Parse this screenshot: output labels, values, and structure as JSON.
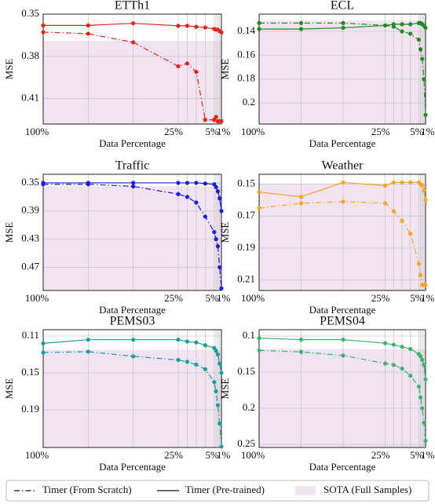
{
  "chart_data": [
    {
      "type": "line",
      "title": "ETTh1",
      "xlabel": "Data Percentage",
      "ylabel": "MSE",
      "color": "#e8211f",
      "x": [
        100,
        75,
        50,
        25,
        20,
        15,
        10,
        5,
        4,
        3,
        2,
        1
      ],
      "xlim": [
        100,
        1
      ],
      "xticks": [
        {
          "value": 100,
          "label": "100%"
        },
        {
          "value": 25,
          "label": "25%"
        },
        {
          "value": 5,
          "label": "5%"
        },
        {
          "value": 1,
          "label": "1%"
        }
      ],
      "xgrid": [
        75,
        50,
        20,
        15,
        10,
        4,
        3,
        2
      ],
      "ylim": [
        0.428,
        0.35
      ],
      "yticks": [
        0.35,
        0.38,
        0.41
      ],
      "grid": true,
      "sota": 0.369,
      "series": [
        {
          "style": "dashdot",
          "values": [
            0.3628,
            0.3639,
            0.37,
            0.387,
            0.385,
            0.391,
            0.425,
            0.425,
            0.423,
            0.426,
            0.426,
            0.426
          ]
        },
        {
          "style": "solid",
          "values": [
            0.358,
            0.358,
            0.3565,
            0.3583,
            0.3583,
            0.359,
            0.3595,
            0.3605,
            0.361,
            0.361,
            0.362,
            0.363
          ]
        }
      ]
    },
    {
      "type": "line",
      "title": "ECL",
      "xlabel": "Data Percentage",
      "ylabel": "MSE",
      "color": "#1e8c1e",
      "x": [
        100,
        75,
        50,
        25,
        20,
        15,
        10,
        5,
        4,
        3,
        2,
        1
      ],
      "xlim": [
        100,
        1
      ],
      "xticks": [
        {
          "value": 100,
          "label": "100%"
        },
        {
          "value": 25,
          "label": "25%"
        },
        {
          "value": 5,
          "label": "5%"
        },
        {
          "value": 1,
          "label": "1%"
        }
      ],
      "xgrid": [
        75,
        50,
        20,
        15,
        10,
        4,
        3,
        2
      ],
      "ylim": [
        0.2177,
        0.1255
      ],
      "yticks": [
        0.14,
        0.16,
        0.18,
        0.2
      ],
      "grid": true,
      "sota": 0.131,
      "series": [
        {
          "style": "dashdot",
          "values": [
            0.133,
            0.133,
            0.133,
            0.135,
            0.136,
            0.14,
            0.142,
            0.147,
            0.155,
            0.163,
            0.18,
            0.21
          ]
        },
        {
          "style": "solid",
          "values": [
            0.138,
            0.138,
            0.137,
            0.135,
            0.134,
            0.134,
            0.134,
            0.133,
            0.133,
            0.134,
            0.135,
            0.137
          ]
        }
      ]
    },
    {
      "type": "line",
      "title": "Traffic",
      "xlabel": "Data Percentage",
      "ylabel": "MSE",
      "color": "#1a1ae6",
      "x": [
        100,
        75,
        50,
        25,
        20,
        15,
        10,
        5,
        4,
        3,
        2,
        1
      ],
      "xlim": [
        100,
        1
      ],
      "xticks": [
        {
          "value": 100,
          "label": "100%"
        },
        {
          "value": 25,
          "label": "25%"
        },
        {
          "value": 5,
          "label": "5%"
        },
        {
          "value": 1,
          "label": "1%"
        }
      ],
      "xgrid": [
        75,
        50,
        20,
        15,
        10,
        4,
        3,
        2
      ],
      "ylim": [
        0.503,
        0.3378
      ],
      "yticks": [
        0.35,
        0.39,
        0.43,
        0.47
      ],
      "grid": true,
      "sota": 0.355,
      "series": [
        {
          "style": "dashdot",
          "values": [
            0.352,
            0.352,
            0.355,
            0.366,
            0.37,
            0.378,
            0.398,
            0.42,
            0.43,
            0.44,
            0.47,
            0.5
          ]
        },
        {
          "style": "solid",
          "values": [
            0.35,
            0.35,
            0.35,
            0.35,
            0.35,
            0.35,
            0.351,
            0.352,
            0.356,
            0.362,
            0.372,
            0.39
          ]
        }
      ]
    },
    {
      "type": "line",
      "title": "Weather",
      "xlabel": "Data Percentage",
      "ylabel": "MSE",
      "color": "#f5a623",
      "x": [
        100,
        75,
        50,
        25,
        20,
        15,
        10,
        5,
        4,
        3,
        2,
        1
      ],
      "xlim": [
        100,
        1
      ],
      "xticks": [
        {
          "value": 100,
          "label": "100%"
        },
        {
          "value": 25,
          "label": "25%"
        },
        {
          "value": 5,
          "label": "5%"
        },
        {
          "value": 1,
          "label": "1%"
        }
      ],
      "xgrid": [
        75,
        50,
        20,
        15,
        10,
        4,
        3,
        2
      ],
      "ylim": [
        0.2165,
        0.1439
      ],
      "yticks": [
        0.15,
        0.17,
        0.19,
        0.21
      ],
      "grid": true,
      "sota": 0.15,
      "series": [
        {
          "style": "dashdot",
          "values": [
            0.165,
            0.162,
            0.161,
            0.162,
            0.167,
            0.173,
            0.181,
            0.2,
            0.207,
            0.213,
            0.213,
            0.213
          ]
        },
        {
          "style": "solid",
          "values": [
            0.155,
            0.158,
            0.149,
            0.151,
            0.149,
            0.149,
            0.149,
            0.149,
            0.15,
            0.151,
            0.154,
            0.16
          ]
        }
      ]
    },
    {
      "type": "line",
      "title": "PEMS03",
      "xlabel": "Data Percentage",
      "ylabel": "MSE",
      "color": "#1a9e9e",
      "x": [
        100,
        75,
        50,
        25,
        20,
        15,
        10,
        5,
        4,
        3,
        2,
        1
      ],
      "xlim": [
        100,
        1
      ],
      "xticks": [
        {
          "value": 100,
          "label": "100%"
        },
        {
          "value": 25,
          "label": "25%"
        },
        {
          "value": 5,
          "label": "5%"
        },
        {
          "value": 1,
          "label": "1%"
        }
      ],
      "xgrid": [
        75,
        50,
        20,
        15,
        10,
        4,
        3,
        2
      ],
      "ylim": [
        0.2309,
        0.1032
      ],
      "yticks": [
        0.11,
        0.15,
        0.19
      ],
      "grid": true,
      "sota": 0.125,
      "series": [
        {
          "style": "dashdot",
          "values": [
            0.128,
            0.127,
            0.132,
            0.136,
            0.138,
            0.141,
            0.146,
            0.16,
            0.17,
            0.185,
            0.205,
            0.23
          ]
        },
        {
          "style": "solid",
          "values": [
            0.118,
            0.114,
            0.114,
            0.114,
            0.116,
            0.117,
            0.12,
            0.123,
            0.126,
            0.13,
            0.14,
            0.15
          ]
        }
      ]
    },
    {
      "type": "line",
      "title": "PEMS04",
      "xlabel": "Data Percentage",
      "ylabel": "MSE",
      "color": "#3cb371",
      "x": [
        100,
        75,
        50,
        25,
        20,
        15,
        10,
        5,
        4,
        3,
        2,
        1
      ],
      "xlim": [
        100,
        1
      ],
      "xticks": [
        {
          "value": 100,
          "label": "100%"
        },
        {
          "value": 25,
          "label": "25%"
        },
        {
          "value": 5,
          "label": "5%"
        },
        {
          "value": 1,
          "label": "1%"
        }
      ],
      "xgrid": [
        75,
        50,
        20,
        15,
        10,
        4,
        3,
        2
      ],
      "ylim": [
        0.2543,
        0.0913
      ],
      "yticks": [
        0.1,
        0.15,
        0.2,
        0.25
      ],
      "grid": true,
      "sota": 0.118,
      "series": [
        {
          "style": "dashdot",
          "values": [
            0.12,
            0.122,
            0.127,
            0.138,
            0.14,
            0.145,
            0.155,
            0.17,
            0.185,
            0.2,
            0.22,
            0.245
          ]
        },
        {
          "style": "solid",
          "values": [
            0.103,
            0.105,
            0.105,
            0.11,
            0.112,
            0.115,
            0.118,
            0.125,
            0.128,
            0.133,
            0.14,
            0.16
          ]
        }
      ]
    }
  ],
  "legend": [
    {
      "label": "Timer (From Scratch)",
      "style": "dashdot"
    },
    {
      "label": "Timer (Pre-trained)",
      "style": "solid"
    },
    {
      "label": "SOTA (Full Samples)",
      "style": "band",
      "color": "#f1e3f1"
    }
  ]
}
